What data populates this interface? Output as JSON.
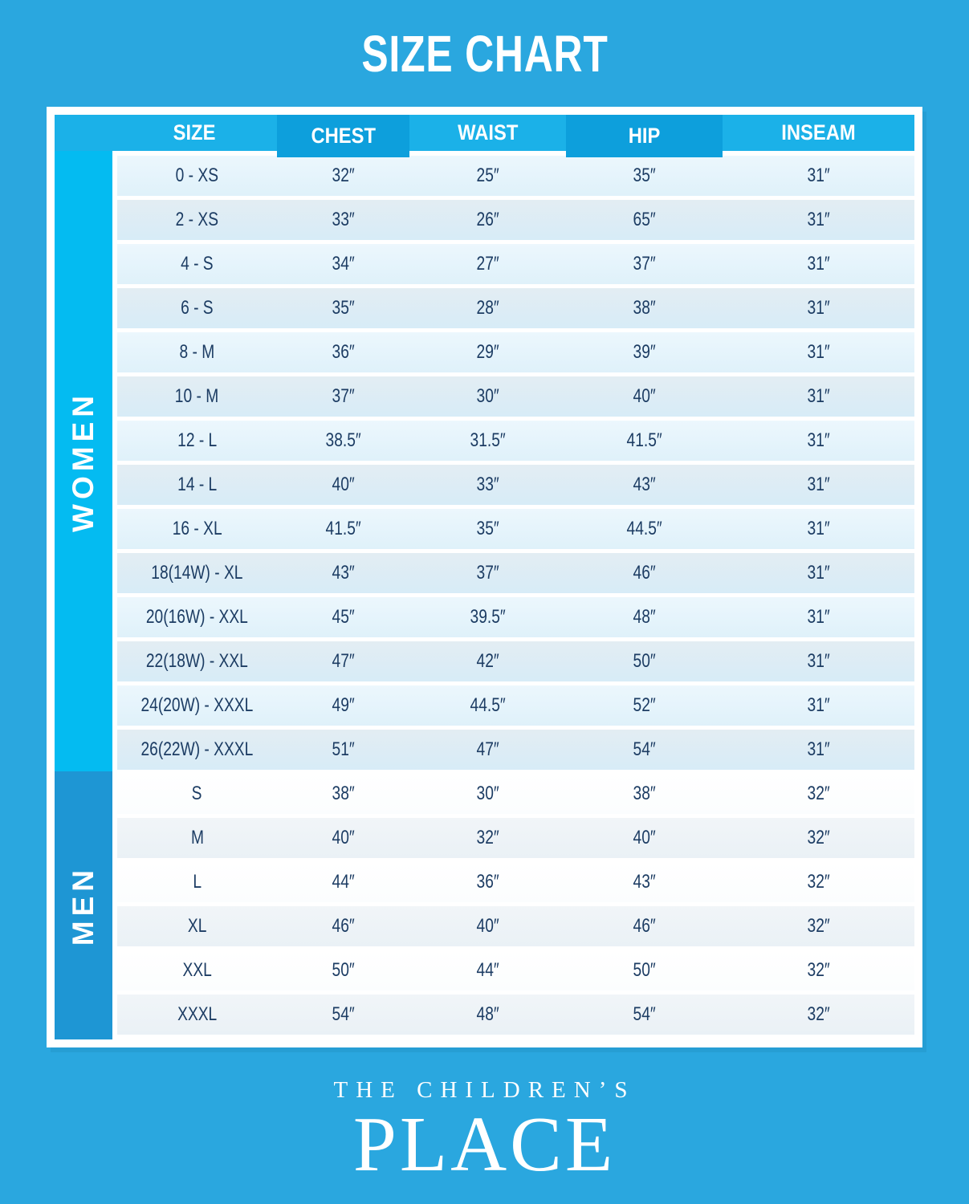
{
  "page": {
    "title": "SIZE CHART"
  },
  "colors": {
    "page_background": "#2AA7DF",
    "title_text": "#FFFFFF",
    "frame_white": "#FFFFFF",
    "header_light": "#1BB1E8",
    "header_dark": "#0D9FDC",
    "cell_text": "#1C3C63",
    "women_row_odd": "#ECF7FD",
    "women_row_even": "#D7ECF7",
    "men_row_odd": "#FFFFFF",
    "men_row_even": "#EAF1F6"
  },
  "table": {
    "columns": [
      "SIZE",
      "CHEST",
      "WAIST",
      "HIP",
      "INSEAM"
    ],
    "sections": [
      {
        "label": "WOMEN",
        "strip_color": "#04BBF1",
        "rows": [
          {
            "size": "0 - XS",
            "chest": "32″",
            "waist": "25″",
            "hip": "35″",
            "inseam": "31″"
          },
          {
            "size": "2 - XS",
            "chest": "33″",
            "waist": "26″",
            "hip": "65″",
            "inseam": "31″"
          },
          {
            "size": "4 - S",
            "chest": "34″",
            "waist": "27″",
            "hip": "37″",
            "inseam": "31″"
          },
          {
            "size": "6 - S",
            "chest": "35″",
            "waist": "28″",
            "hip": "38″",
            "inseam": "31″"
          },
          {
            "size": "8 - M",
            "chest": "36″",
            "waist": "29″",
            "hip": "39″",
            "inseam": "31″"
          },
          {
            "size": "10 - M",
            "chest": "37″",
            "waist": "30″",
            "hip": "40″",
            "inseam": "31″"
          },
          {
            "size": "12 - L",
            "chest": "38.5″",
            "waist": "31.5″",
            "hip": "41.5″",
            "inseam": "31″"
          },
          {
            "size": "14 - L",
            "chest": "40″",
            "waist": "33″",
            "hip": "43″",
            "inseam": "31″"
          },
          {
            "size": "16 - XL",
            "chest": "41.5″",
            "waist": "35″",
            "hip": "44.5″",
            "inseam": "31″"
          },
          {
            "size": "18(14W) - XL",
            "chest": "43″",
            "waist": "37″",
            "hip": "46″",
            "inseam": "31″"
          },
          {
            "size": "20(16W) - XXL",
            "chest": "45″",
            "waist": "39.5″",
            "hip": "48″",
            "inseam": "31″"
          },
          {
            "size": "22(18W) - XXL",
            "chest": "47″",
            "waist": "42″",
            "hip": "50″",
            "inseam": "31″"
          },
          {
            "size": "24(20W) - XXXL",
            "chest": "49″",
            "waist": "44.5″",
            "hip": "52″",
            "inseam": "31″"
          },
          {
            "size": "26(22W) - XXXL",
            "chest": "51″",
            "waist": "47″",
            "hip": "54″",
            "inseam": "31″"
          }
        ]
      },
      {
        "label": "MEN",
        "strip_color": "#1E96D4",
        "rows": [
          {
            "size": "S",
            "chest": "38″",
            "waist": "30″",
            "hip": "38″",
            "inseam": "32″"
          },
          {
            "size": "M",
            "chest": "40″",
            "waist": "32″",
            "hip": "40″",
            "inseam": "32″"
          },
          {
            "size": "L",
            "chest": "44″",
            "waist": "36″",
            "hip": "43″",
            "inseam": "32″"
          },
          {
            "size": "XL",
            "chest": "46″",
            "waist": "40″",
            "hip": "46″",
            "inseam": "32″"
          },
          {
            "size": "XXL",
            "chest": "50″",
            "waist": "44″",
            "hip": "50″",
            "inseam": "32″"
          },
          {
            "size": "XXXL",
            "chest": "54″",
            "waist": "48″",
            "hip": "54″",
            "inseam": "32″"
          }
        ]
      }
    ]
  },
  "footer": {
    "line1": "THE CHILDREN’S",
    "line2": "PLACE"
  }
}
